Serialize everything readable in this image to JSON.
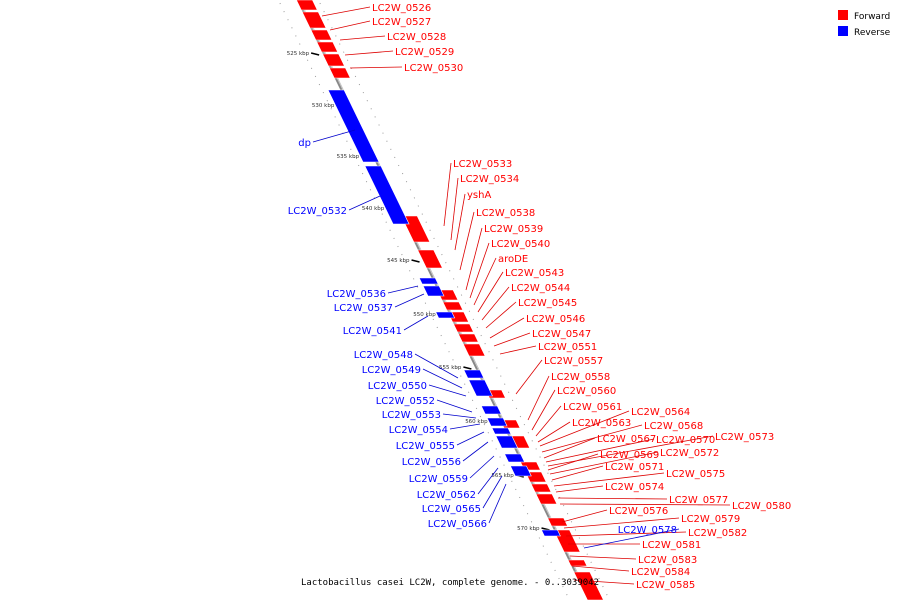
{
  "colors": {
    "forward": "#ff0000",
    "reverse": "#0000ff",
    "backbone": "#888888",
    "leader_forward": "#dd0000",
    "leader_reverse": "#0000cc"
  },
  "legend": {
    "forward": "Forward",
    "reverse": "Reverse"
  },
  "caption": "Lactobacillus casei LC2W, complete genome. - 0..3039042",
  "ticks": [
    "525 kbp",
    "530 kbp",
    "535 kbp",
    "540 kbp",
    "545 kbp",
    "550 kbp",
    "555 kbp",
    "560 kbp",
    "565 kbp",
    "570 kbp"
  ],
  "forward_genes": [
    "LC2W_0526",
    "LC2W_0527",
    "LC2W_0528",
    "LC2W_0529",
    "LC2W_0530",
    "LC2W_0533",
    "LC2W_0534",
    "yshA",
    "LC2W_0538",
    "LC2W_0539",
    "LC2W_0540",
    "aroDE",
    "LC2W_0543",
    "LC2W_0544",
    "LC2W_0545",
    "LC2W_0546",
    "LC2W_0547",
    "LC2W_0551",
    "LC2W_0557",
    "LC2W_0558",
    "LC2W_0560",
    "LC2W_0561",
    "LC2W_0563",
    "LC2W_0564",
    "LC2W_0568",
    "LC2W_0567",
    "LC2W_0570",
    "LC2W_0573",
    "LC2W_0569",
    "LC2W_0572",
    "LC2W_0571",
    "LC2W_0575",
    "LC2W_0574",
    "LC2W_0577",
    "LC2W_0580",
    "LC2W_0576",
    "LC2W_0579",
    "LC2W_0582",
    "LC2W_0581",
    "LC2W_0583",
    "LC2W_0584",
    "LC2W_0585"
  ],
  "reverse_genes": [
    "dp",
    "LC2W_0532",
    "LC2W_0536",
    "LC2W_0537",
    "LC2W_0541",
    "LC2W_0548",
    "LC2W_0549",
    "LC2W_0550",
    "LC2W_0552",
    "LC2W_0553",
    "LC2W_0554",
    "LC2W_0555",
    "LC2W_0556",
    "LC2W_0559",
    "LC2W_0562",
    "LC2W_0565",
    "LC2W_0566",
    "LC2W_0578"
  ]
}
